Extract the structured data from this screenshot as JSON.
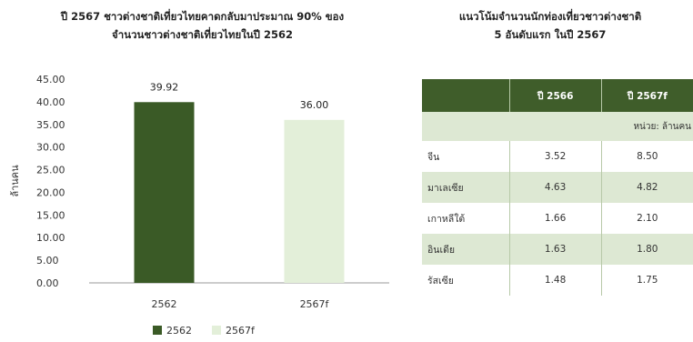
{
  "left_chart": {
    "title_line1": "ปี 2567 ชาวต่างชาติเที่ยวไทยคาดกลับมาประมาณ 90% ของ",
    "title_line2": "จำนวนชาวต่างชาติเที่ยวไทยในปี 2562"
  },
  "chart_data": {
    "type": "bar",
    "title": "ปี 2567 ชาวต่างชาติเที่ยวไทยคาดกลับมาประมาณ 90% ของ จำนวนชาวต่างชาติเที่ยวไทยในปี 2562",
    "categories": [
      "2562",
      "2567f"
    ],
    "values": [
      39.92,
      36.0
    ],
    "value_labels": [
      "39.92",
      "36.00"
    ],
    "colors": [
      "#3a5a26",
      "#e3efd9"
    ],
    "ylabel": "ล้านคน",
    "xlabel": "",
    "ylim": [
      0,
      45
    ],
    "yticks": [
      "0.00",
      "5.00",
      "10.00",
      "15.00",
      "20.00",
      "25.00",
      "30.00",
      "35.00",
      "40.00",
      "45.00"
    ],
    "grid": false,
    "legend": {
      "position": "bottom",
      "entries": [
        {
          "label": "2562",
          "color": "#3a5a26"
        },
        {
          "label": "2567f",
          "color": "#e3efd9"
        }
      ]
    }
  },
  "table": {
    "title_line1": "แนวโน้มจำนวนนักท่องเที่ยวชาวต่างชาติ",
    "title_line2": "5 อันดับแรก ในปี 2567",
    "headers": [
      "",
      "ปี 2566",
      "ปี 2567f"
    ],
    "unit_note": "หน่วย: ล้านคน",
    "rows": [
      {
        "country": "จีน",
        "y2566": "3.52",
        "y2567f": "8.50"
      },
      {
        "country": "มาเลเซีย",
        "y2566": "4.63",
        "y2567f": "4.82"
      },
      {
        "country": "เกาหลีใต้",
        "y2566": "1.66",
        "y2567f": "2.10"
      },
      {
        "country": "อินเดีย",
        "y2566": "1.63",
        "y2567f": "1.80"
      },
      {
        "country": "รัสเซีย",
        "y2566": "1.48",
        "y2567f": "1.75"
      }
    ],
    "colors": {
      "header_bg": "#3f5d2a",
      "stripe_bg": "#dde8d3"
    }
  }
}
